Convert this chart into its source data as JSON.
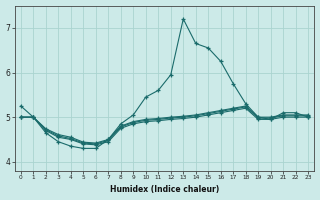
{
  "xlabel": "Humidex (Indice chaleur)",
  "bg_color": "#cceae8",
  "grid_color": "#aad4d0",
  "line_color": "#1a6b6b",
  "xlim": [
    -0.5,
    23.5
  ],
  "ylim": [
    3.8,
    7.5
  ],
  "yticks": [
    4,
    5,
    6,
    7
  ],
  "xticks": [
    0,
    1,
    2,
    3,
    4,
    5,
    6,
    7,
    8,
    9,
    10,
    11,
    12,
    13,
    14,
    15,
    16,
    17,
    18,
    19,
    20,
    21,
    22,
    23
  ],
  "line_main_x": [
    0,
    1,
    2,
    3,
    4,
    5,
    6,
    7,
    8,
    9,
    10,
    11,
    12,
    13,
    14,
    15,
    16,
    17,
    18,
    19,
    20,
    21,
    22,
    23
  ],
  "line_main_y": [
    5.25,
    5.0,
    4.65,
    4.45,
    4.35,
    4.3,
    4.3,
    4.5,
    4.85,
    5.05,
    5.45,
    5.6,
    5.95,
    7.2,
    6.65,
    6.55,
    6.25,
    5.75,
    5.3,
    5.0,
    4.95,
    5.1,
    5.1,
    5.0
  ],
  "line_flat1_x": [
    0,
    1,
    2,
    3,
    4,
    5,
    6,
    7,
    8,
    9,
    10,
    11,
    12,
    13,
    14,
    15,
    16,
    17,
    18,
    19,
    20,
    21,
    22,
    23
  ],
  "line_flat1_y": [
    5.0,
    5.0,
    4.7,
    4.55,
    4.5,
    4.4,
    4.38,
    4.45,
    4.75,
    4.85,
    4.9,
    4.92,
    4.95,
    4.97,
    5.0,
    5.05,
    5.1,
    5.15,
    5.2,
    4.95,
    4.95,
    5.0,
    5.0,
    5.0
  ],
  "line_flat2_x": [
    0,
    1,
    2,
    3,
    4,
    5,
    6,
    7,
    8,
    9,
    10,
    11,
    12,
    13,
    14,
    15,
    16,
    17,
    18,
    19,
    20,
    21,
    22,
    23
  ],
  "line_flat2_y": [
    5.0,
    5.0,
    4.72,
    4.58,
    4.52,
    4.42,
    4.4,
    4.48,
    4.78,
    4.88,
    4.93,
    4.95,
    4.98,
    5.0,
    5.03,
    5.08,
    5.13,
    5.18,
    5.23,
    4.98,
    4.98,
    5.03,
    5.03,
    5.03
  ],
  "line_flat3_x": [
    0,
    1,
    2,
    3,
    4,
    5,
    6,
    7,
    8,
    9,
    10,
    11,
    12,
    13,
    14,
    15,
    16,
    17,
    18,
    19,
    20,
    21,
    22,
    23
  ],
  "line_flat3_y": [
    5.0,
    5.0,
    4.74,
    4.61,
    4.55,
    4.44,
    4.42,
    4.5,
    4.8,
    4.9,
    4.95,
    4.97,
    5.0,
    5.02,
    5.05,
    5.1,
    5.15,
    5.2,
    5.25,
    5.0,
    5.0,
    5.05,
    5.05,
    5.05
  ]
}
